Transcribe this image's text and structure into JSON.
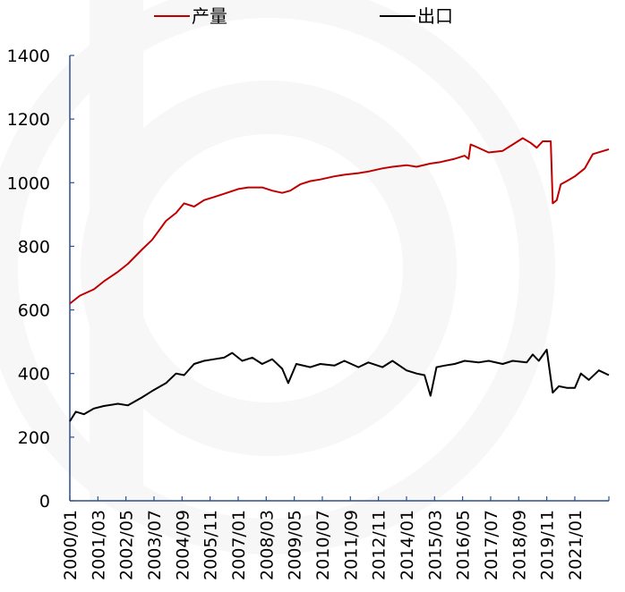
{
  "chart_data": {
    "type": "line",
    "title": "",
    "xlabel": "",
    "ylabel": "",
    "ylim": [
      0,
      1400
    ],
    "yticks": [
      0,
      200,
      400,
      600,
      800,
      1000,
      1200,
      1400
    ],
    "x_tick_labels": [
      "2000/01",
      "2001/03",
      "2002/05",
      "2003/07",
      "2004/09",
      "2005/11",
      "2007/01",
      "2008/03",
      "2009/05",
      "2010/07",
      "2011/09",
      "2012/11",
      "2014/01",
      "2015/03",
      "2016/05",
      "2017/07",
      "2018/09",
      "2019/11",
      "2021/01"
    ],
    "x_range": [
      "2000/01",
      "2022/06"
    ],
    "legend_position": "top",
    "series": [
      {
        "name": "产量",
        "color": "#c00000",
        "points": [
          [
            "2000/01",
            620
          ],
          [
            "2000/06",
            645
          ],
          [
            "2001/01",
            665
          ],
          [
            "2001/06",
            690
          ],
          [
            "2002/01",
            720
          ],
          [
            "2002/06",
            745
          ],
          [
            "2003/01",
            790
          ],
          [
            "2003/06",
            820
          ],
          [
            "2004/01",
            880
          ],
          [
            "2004/06",
            905
          ],
          [
            "2004/10",
            935
          ],
          [
            "2005/03",
            925
          ],
          [
            "2005/08",
            945
          ],
          [
            "2006/01",
            955
          ],
          [
            "2006/06",
            965
          ],
          [
            "2007/01",
            980
          ],
          [
            "2007/06",
            985
          ],
          [
            "2008/01",
            985
          ],
          [
            "2008/06",
            975
          ],
          [
            "2008/11",
            968
          ],
          [
            "2009/03",
            975
          ],
          [
            "2009/08",
            995
          ],
          [
            "2010/01",
            1005
          ],
          [
            "2010/06",
            1010
          ],
          [
            "2011/01",
            1020
          ],
          [
            "2011/06",
            1025
          ],
          [
            "2012/01",
            1030
          ],
          [
            "2012/06",
            1035
          ],
          [
            "2013/01",
            1045
          ],
          [
            "2013/06",
            1050
          ],
          [
            "2014/01",
            1055
          ],
          [
            "2014/06",
            1050
          ],
          [
            "2015/01",
            1060
          ],
          [
            "2015/06",
            1065
          ],
          [
            "2016/01",
            1075
          ],
          [
            "2016/06",
            1085
          ],
          [
            "2016/08",
            1075
          ],
          [
            "2016/09",
            1120
          ],
          [
            "2016/11",
            1115
          ],
          [
            "2017/06",
            1095
          ],
          [
            "2018/01",
            1100
          ],
          [
            "2018/06",
            1120
          ],
          [
            "2018/11",
            1140
          ],
          [
            "2019/03",
            1125
          ],
          [
            "2019/06",
            1110
          ],
          [
            "2019/09",
            1130
          ],
          [
            "2020/01",
            1130
          ],
          [
            "2020/02",
            935
          ],
          [
            "2020/04",
            945
          ],
          [
            "2020/06",
            995
          ],
          [
            "2020/09",
            1005
          ],
          [
            "2021/01",
            1020
          ],
          [
            "2021/06",
            1045
          ],
          [
            "2021/10",
            1090
          ],
          [
            "2022/06",
            1105
          ]
        ]
      },
      {
        "name": "出口",
        "color": "#000000",
        "points": [
          [
            "2000/01",
            250
          ],
          [
            "2000/04",
            280
          ],
          [
            "2000/08",
            272
          ],
          [
            "2001/01",
            290
          ],
          [
            "2001/06",
            298
          ],
          [
            "2002/01",
            305
          ],
          [
            "2002/06",
            300
          ],
          [
            "2003/01",
            325
          ],
          [
            "2003/06",
            345
          ],
          [
            "2004/01",
            370
          ],
          [
            "2004/06",
            400
          ],
          [
            "2004/10",
            395
          ],
          [
            "2005/03",
            430
          ],
          [
            "2005/08",
            440
          ],
          [
            "2006/01",
            445
          ],
          [
            "2006/06",
            450
          ],
          [
            "2006/10",
            465
          ],
          [
            "2007/03",
            440
          ],
          [
            "2007/08",
            450
          ],
          [
            "2008/01",
            430
          ],
          [
            "2008/06",
            445
          ],
          [
            "2008/11",
            415
          ],
          [
            "2009/02",
            370
          ],
          [
            "2009/06",
            430
          ],
          [
            "2010/01",
            420
          ],
          [
            "2010/06",
            430
          ],
          [
            "2011/01",
            425
          ],
          [
            "2011/06",
            440
          ],
          [
            "2012/01",
            420
          ],
          [
            "2012/06",
            435
          ],
          [
            "2013/01",
            420
          ],
          [
            "2013/06",
            440
          ],
          [
            "2014/01",
            410
          ],
          [
            "2014/06",
            400
          ],
          [
            "2014/10",
            395
          ],
          [
            "2015/01",
            330
          ],
          [
            "2015/04",
            420
          ],
          [
            "2015/08",
            425
          ],
          [
            "2016/01",
            430
          ],
          [
            "2016/06",
            440
          ],
          [
            "2017/01",
            435
          ],
          [
            "2017/06",
            440
          ],
          [
            "2018/01",
            430
          ],
          [
            "2018/06",
            440
          ],
          [
            "2019/01",
            435
          ],
          [
            "2019/04",
            460
          ],
          [
            "2019/07",
            440
          ],
          [
            "2019/11",
            475
          ],
          [
            "2020/02",
            340
          ],
          [
            "2020/05",
            360
          ],
          [
            "2020/09",
            355
          ],
          [
            "2021/01",
            355
          ],
          [
            "2021/04",
            400
          ],
          [
            "2021/08",
            380
          ],
          [
            "2022/01",
            410
          ],
          [
            "2022/06",
            395
          ]
        ]
      }
    ]
  }
}
